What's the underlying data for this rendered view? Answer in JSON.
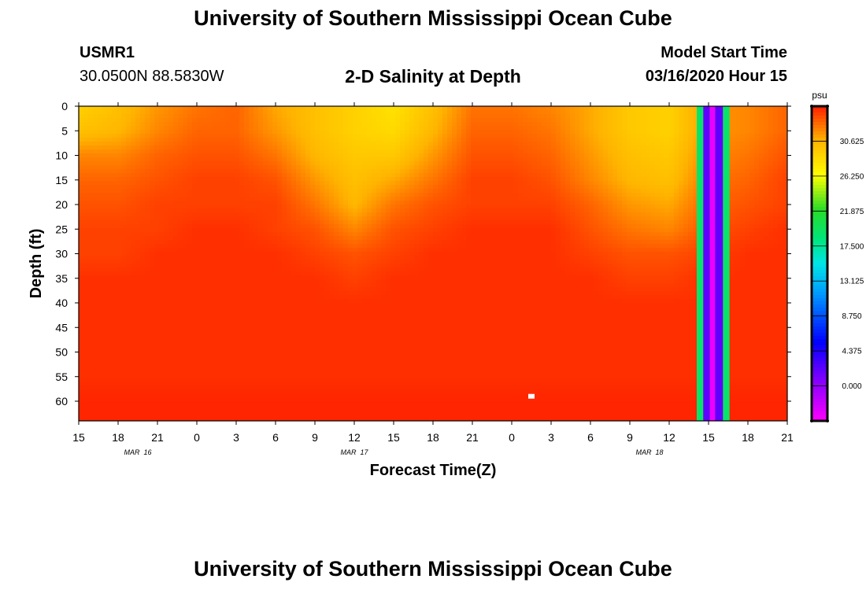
{
  "page": {
    "title_top": "University of Southern Mississippi Ocean Cube",
    "title_bottom": "University of Southern Mississippi Ocean Cube",
    "station_id": "USMR1",
    "station_coords": "30.0500N 88.5830W",
    "plot_title": "2-D Salinity at Depth",
    "model_start_label": "Model Start Time",
    "model_start_value": "03/16/2020 Hour 15"
  },
  "chart_data": {
    "type": "heatmap",
    "title": "2-D Salinity at Depth",
    "xlabel": "Forecast Time(Z)",
    "ylabel": "Depth (ft)",
    "units": "psu",
    "x_range_hours": [
      0,
      54
    ],
    "x_ticks": [
      "15",
      "18",
      "21",
      "0",
      "3",
      "6",
      "9",
      "12",
      "15",
      "18",
      "21",
      "0",
      "3",
      "6",
      "9",
      "12",
      "15",
      "18",
      "21"
    ],
    "date_labels": [
      {
        "label": "MAR 16",
        "hour": 4.5
      },
      {
        "label": "MAR 17",
        "hour": 21
      },
      {
        "label": "MAR 18",
        "hour": 43.5
      }
    ],
    "y_range": [
      0,
      64
    ],
    "y_ticks": [
      0,
      5,
      10,
      15,
      20,
      25,
      30,
      35,
      40,
      45,
      50,
      55,
      60
    ],
    "colorbar": {
      "units": "psu",
      "range": [
        -4.375,
        35
      ],
      "tick_values": [
        30.625,
        26.25,
        21.875,
        17.5,
        13.125,
        8.75,
        4.375,
        0.0
      ],
      "tick_labels": [
        "30.625",
        "26.250",
        "21.875",
        "17.500",
        "13.125",
        "8.750",
        "4.375",
        "0.000"
      ]
    },
    "depth_levels": [
      0,
      5,
      10,
      15,
      20,
      25,
      30,
      35,
      40,
      45,
      50,
      55,
      60,
      64
    ],
    "time_steps": [
      0,
      3,
      6,
      9,
      12,
      15,
      18,
      21,
      24,
      27,
      30,
      33,
      36,
      39,
      42,
      45,
      48,
      51,
      54
    ],
    "salinity": [
      [
        29.0,
        30.0,
        31.5,
        32.5,
        33.0,
        31.0,
        30.0,
        29.0,
        28.0,
        30.0,
        32.5,
        32.5,
        32.0,
        31.0,
        29.5,
        29.0,
        31.5,
        32.0,
        33.0
      ],
      [
        30.0,
        30.5,
        32.0,
        33.0,
        33.0,
        31.5,
        30.0,
        29.0,
        28.5,
        30.5,
        33.0,
        33.0,
        32.5,
        31.0,
        29.5,
        29.0,
        31.5,
        32.0,
        33.0
      ],
      [
        32.0,
        32.0,
        33.0,
        33.5,
        33.5,
        32.5,
        30.5,
        29.5,
        29.5,
        31.5,
        33.5,
        33.5,
        33.0,
        31.5,
        30.0,
        29.5,
        32.0,
        32.5,
        33.5
      ],
      [
        33.0,
        33.0,
        33.5,
        34.0,
        34.0,
        33.5,
        31.5,
        30.0,
        31.0,
        32.5,
        34.0,
        34.0,
        33.5,
        32.0,
        30.5,
        30.0,
        32.5,
        33.0,
        34.0
      ],
      [
        33.5,
        33.5,
        34.0,
        34.0,
        34.0,
        34.0,
        32.5,
        30.5,
        32.5,
        33.5,
        34.0,
        34.0,
        34.0,
        33.0,
        31.5,
        31.0,
        33.0,
        33.5,
        34.0
      ],
      [
        34.0,
        34.0,
        34.0,
        34.5,
        34.5,
        34.0,
        33.5,
        32.0,
        33.5,
        34.0,
        34.5,
        34.5,
        34.5,
        33.5,
        32.5,
        32.0,
        33.5,
        34.0,
        34.5
      ],
      [
        34.0,
        34.0,
        34.5,
        34.5,
        34.5,
        34.5,
        34.0,
        33.5,
        34.0,
        34.5,
        34.5,
        34.5,
        34.5,
        34.0,
        33.5,
        33.5,
        34.0,
        34.5,
        34.5
      ],
      [
        34.5,
        34.5,
        34.5,
        34.5,
        34.5,
        34.5,
        34.5,
        34.0,
        34.5,
        34.5,
        34.5,
        34.5,
        34.5,
        34.5,
        34.0,
        34.0,
        34.5,
        34.5,
        34.5
      ],
      [
        34.5,
        34.5,
        34.5,
        34.5,
        34.5,
        34.5,
        34.5,
        34.5,
        34.5,
        34.5,
        34.5,
        34.5,
        34.5,
        34.5,
        34.5,
        34.5,
        34.5,
        34.5,
        34.5
      ],
      [
        34.5,
        34.5,
        34.5,
        34.5,
        34.5,
        34.5,
        34.5,
        34.5,
        34.5,
        34.5,
        34.5,
        34.5,
        34.5,
        34.5,
        34.5,
        34.5,
        34.5,
        34.5,
        34.5
      ],
      [
        34.5,
        34.5,
        34.5,
        34.5,
        34.5,
        34.5,
        34.5,
        34.5,
        34.5,
        34.5,
        34.5,
        34.5,
        34.5,
        34.5,
        34.5,
        34.5,
        34.5,
        34.5,
        34.5
      ],
      [
        34.5,
        34.5,
        34.5,
        34.5,
        34.5,
        34.5,
        34.5,
        34.5,
        34.5,
        34.5,
        34.5,
        34.5,
        34.5,
        34.5,
        34.5,
        34.5,
        34.5,
        34.5,
        34.5
      ],
      [
        34.8,
        34.8,
        34.8,
        34.8,
        34.8,
        34.8,
        34.8,
        34.8,
        34.8,
        34.8,
        34.8,
        34.8,
        34.8,
        34.8,
        34.8,
        34.8,
        34.8,
        34.8,
        34.8
      ],
      [
        34.8,
        34.8,
        34.8,
        34.8,
        34.8,
        34.8,
        34.8,
        34.8,
        34.8,
        34.8,
        34.8,
        34.8,
        34.8,
        34.8,
        34.8,
        34.8,
        34.8,
        34.8,
        34.8
      ]
    ],
    "anomaly_bands": [
      {
        "hour_start": 47.1,
        "hour_end": 47.6,
        "salinity": 19.0
      },
      {
        "hour_start": 47.6,
        "hour_end": 48.1,
        "salinity": 2.0
      },
      {
        "hour_start": 48.1,
        "hour_end": 48.5,
        "salinity": -3.5
      },
      {
        "hour_start": 48.5,
        "hour_end": 49.1,
        "salinity": 2.0
      },
      {
        "hour_start": 49.1,
        "hour_end": 49.6,
        "salinity": 19.0
      }
    ],
    "markers": [
      {
        "hour": 34.5,
        "depth": 59,
        "color": "#ffffff"
      }
    ]
  }
}
